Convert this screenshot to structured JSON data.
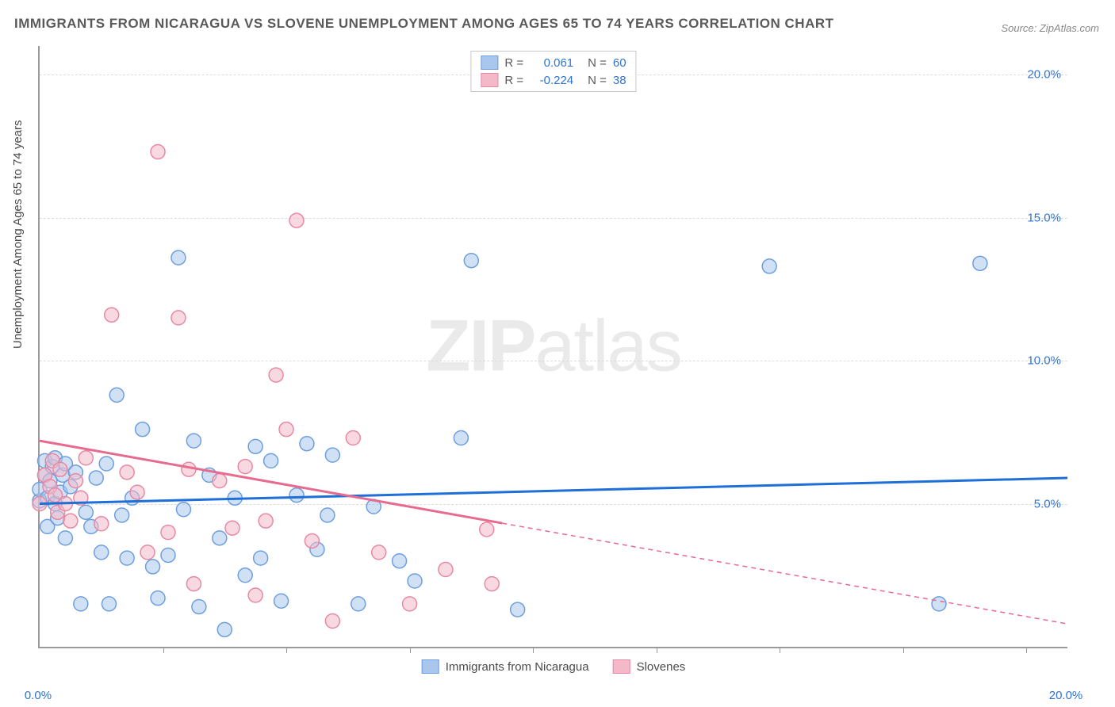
{
  "title": "IMMIGRANTS FROM NICARAGUA VS SLOVENE UNEMPLOYMENT AMONG AGES 65 TO 74 YEARS CORRELATION CHART",
  "source_label": "Source: ZipAtlas.com",
  "y_axis_title": "Unemployment Among Ages 65 to 74 years",
  "watermark_bold": "ZIP",
  "watermark_light": "atlas",
  "chart": {
    "type": "scatter",
    "xlim": [
      0,
      20
    ],
    "ylim": [
      0,
      21
    ],
    "x_tick_labels": [
      {
        "v": 0,
        "label": "0.0%",
        "color": "#2f74d0"
      },
      {
        "v": 20,
        "label": "20.0%",
        "color": "#2f74d0"
      }
    ],
    "x_minor_ticks": [
      2.4,
      4.8,
      7.2,
      9.6,
      12.0,
      14.4,
      16.8,
      19.2
    ],
    "y_tick_labels": [
      {
        "v": 5,
        "label": "5.0%",
        "color": "#2f74d0"
      },
      {
        "v": 10,
        "label": "10.0%",
        "color": "#2f74d0"
      },
      {
        "v": 15,
        "label": "15.0%",
        "color": "#2f74d0"
      },
      {
        "v": 20,
        "label": "20.0%",
        "color": "#2f74d0"
      }
    ],
    "grid_color": "#dddddd",
    "background_color": "#ffffff",
    "series": [
      {
        "name": "Immigrants from Nicaragua",
        "color_fill": "#a9c7ec",
        "color_stroke": "#6f9fde",
        "marker_radius": 9,
        "fill_opacity": 0.55,
        "trend": {
          "x1": 0,
          "y1": 5.0,
          "x2": 20,
          "y2": 5.9,
          "color": "#1e6fd8",
          "width": 3,
          "solid_until_x": 20
        },
        "R": "0.061",
        "N": "60",
        "points": [
          [
            0.0,
            5.1
          ],
          [
            0.0,
            5.5
          ],
          [
            0.1,
            6.0
          ],
          [
            0.1,
            6.5
          ],
          [
            0.15,
            5.2
          ],
          [
            0.15,
            4.2
          ],
          [
            0.2,
            5.8
          ],
          [
            0.25,
            6.3
          ],
          [
            0.3,
            5.0
          ],
          [
            0.3,
            6.6
          ],
          [
            0.35,
            4.5
          ],
          [
            0.4,
            5.4
          ],
          [
            0.45,
            6.0
          ],
          [
            0.5,
            6.4
          ],
          [
            0.5,
            3.8
          ],
          [
            0.6,
            5.6
          ],
          [
            0.7,
            6.1
          ],
          [
            0.8,
            1.5
          ],
          [
            0.9,
            4.7
          ],
          [
            1.0,
            4.2
          ],
          [
            1.1,
            5.9
          ],
          [
            1.2,
            3.3
          ],
          [
            1.3,
            6.4
          ],
          [
            1.35,
            1.5
          ],
          [
            1.5,
            8.8
          ],
          [
            1.6,
            4.6
          ],
          [
            1.7,
            3.1
          ],
          [
            1.8,
            5.2
          ],
          [
            2.0,
            7.6
          ],
          [
            2.2,
            2.8
          ],
          [
            2.3,
            1.7
          ],
          [
            2.5,
            3.2
          ],
          [
            2.7,
            13.6
          ],
          [
            2.8,
            4.8
          ],
          [
            3.0,
            7.2
          ],
          [
            3.1,
            1.4
          ],
          [
            3.3,
            6.0
          ],
          [
            3.5,
            3.8
          ],
          [
            3.6,
            0.6
          ],
          [
            3.8,
            5.2
          ],
          [
            4.0,
            2.5
          ],
          [
            4.2,
            7.0
          ],
          [
            4.3,
            3.1
          ],
          [
            4.5,
            6.5
          ],
          [
            4.7,
            1.6
          ],
          [
            5.0,
            5.3
          ],
          [
            5.2,
            7.1
          ],
          [
            5.4,
            3.4
          ],
          [
            5.6,
            4.6
          ],
          [
            5.7,
            6.7
          ],
          [
            6.2,
            1.5
          ],
          [
            6.5,
            4.9
          ],
          [
            7.0,
            3.0
          ],
          [
            7.3,
            2.3
          ],
          [
            8.2,
            7.3
          ],
          [
            8.4,
            13.5
          ],
          [
            9.3,
            1.3
          ],
          [
            14.2,
            13.3
          ],
          [
            17.5,
            1.5
          ],
          [
            18.3,
            13.4
          ]
        ]
      },
      {
        "name": "Slovenes",
        "color_fill": "#f4b9c8",
        "color_stroke": "#e889a3",
        "marker_radius": 9,
        "fill_opacity": 0.55,
        "trend": {
          "x1": 0,
          "y1": 7.2,
          "x2": 20,
          "y2": 0.8,
          "color": "#e76a8f",
          "width": 3,
          "solid_until_x": 9
        },
        "R": "-0.224",
        "N": "38",
        "points": [
          [
            0.0,
            5.0
          ],
          [
            0.1,
            6.0
          ],
          [
            0.2,
            5.6
          ],
          [
            0.25,
            6.5
          ],
          [
            0.3,
            5.3
          ],
          [
            0.35,
            4.7
          ],
          [
            0.4,
            6.2
          ],
          [
            0.5,
            5.0
          ],
          [
            0.6,
            4.4
          ],
          [
            0.7,
            5.8
          ],
          [
            0.8,
            5.2
          ],
          [
            0.9,
            6.6
          ],
          [
            1.2,
            4.3
          ],
          [
            1.4,
            11.6
          ],
          [
            1.7,
            6.1
          ],
          [
            1.9,
            5.4
          ],
          [
            2.1,
            3.3
          ],
          [
            2.3,
            17.3
          ],
          [
            2.5,
            4.0
          ],
          [
            2.7,
            11.5
          ],
          [
            2.9,
            6.2
          ],
          [
            3.0,
            2.2
          ],
          [
            3.5,
            5.8
          ],
          [
            3.75,
            4.15
          ],
          [
            4.0,
            6.3
          ],
          [
            4.2,
            1.8
          ],
          [
            4.4,
            4.4
          ],
          [
            4.6,
            9.5
          ],
          [
            4.8,
            7.6
          ],
          [
            5.0,
            14.9
          ],
          [
            5.3,
            3.7
          ],
          [
            5.7,
            0.9
          ],
          [
            6.1,
            7.3
          ],
          [
            6.6,
            3.3
          ],
          [
            7.2,
            1.5
          ],
          [
            7.9,
            2.7
          ],
          [
            8.7,
            4.1
          ],
          [
            8.8,
            2.2
          ]
        ]
      }
    ]
  },
  "legend_top": {
    "R_label": "R =",
    "N_label": "N =",
    "value_color": "#2f74d0",
    "label_color": "#5a5a5a"
  }
}
